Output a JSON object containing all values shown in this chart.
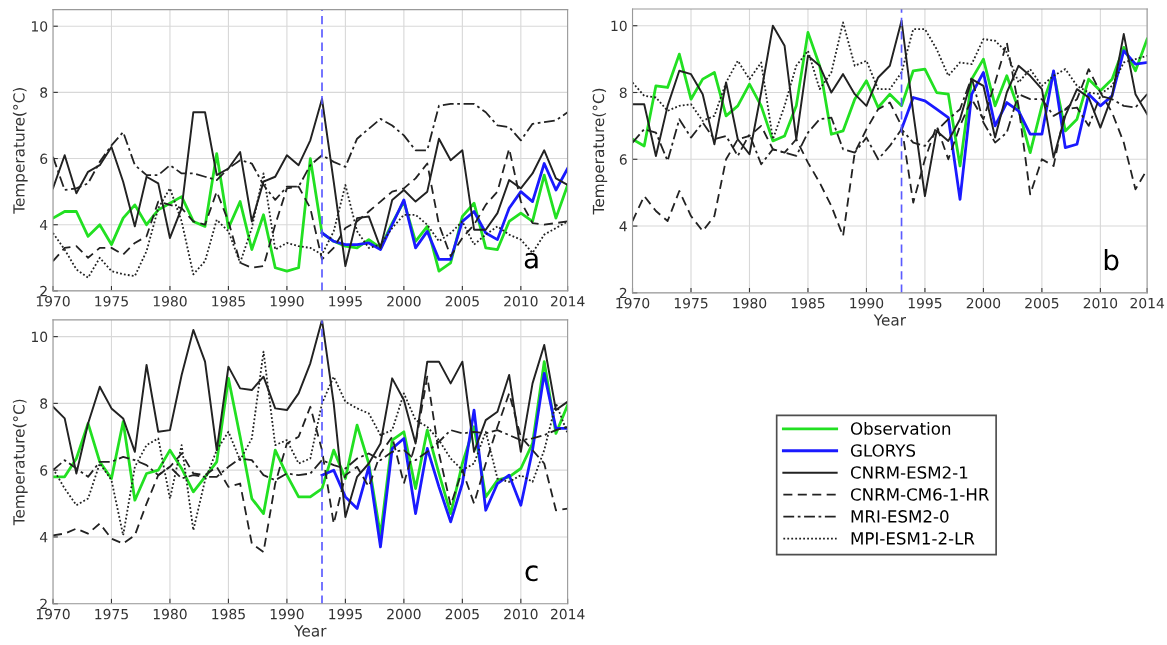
{
  "chart_data": [
    {
      "type": "line",
      "ylabel": "Temperature(°C)",
      "xlim": [
        1970,
        2014
      ],
      "ylim": [
        2,
        10.5
      ],
      "xticks": [
        1970,
        1975,
        1980,
        1985,
        1990,
        1995,
        2000,
        2005,
        2010,
        2014
      ],
      "yticks": [
        2,
        4,
        6,
        8,
        10
      ],
      "grid": true,
      "legend": "bottom right",
      "annotations": [
        "a"
      ],
      "x": [
        1970,
        1971,
        1972,
        1973,
        1974,
        1975,
        1976,
        1977,
        1978,
        1979,
        1980,
        1981,
        1982,
        1983,
        1984,
        1985,
        1986,
        1987,
        1988,
        1989,
        1990,
        1991,
        1992,
        1993,
        1994,
        1995,
        1996,
        1997,
        1998,
        1999,
        2000,
        2001,
        2002,
        2003,
        2004,
        2005,
        2006,
        2007,
        2008,
        2009,
        2010,
        2011,
        2012,
        2013,
        2014
      ],
      "ref_lines": [
        {
          "axis": "x",
          "value": 1993,
          "color": "#5a5aff",
          "line_style": "dashed"
        }
      ],
      "series": [
        {
          "name": "Observation",
          "color": "#22e022",
          "line_style": "solid",
          "values": [
            4.2,
            4.4,
            4.4,
            3.65,
            4.0,
            3.4,
            4.2,
            4.6,
            4.0,
            4.45,
            4.65,
            4.85,
            4.1,
            3.95,
            6.15,
            3.9,
            4.7,
            3.25,
            4.3,
            2.7,
            2.6,
            2.7,
            6.0,
            3.75,
            3.5,
            3.35,
            3.3,
            3.55,
            3.3,
            4.05,
            4.7,
            3.5,
            3.95,
            2.6,
            2.85,
            4.25,
            4.65,
            3.3,
            3.25,
            4.1,
            4.35,
            4.1,
            5.5,
            4.2,
            5.2
          ]
        },
        {
          "name": "GLORYS",
          "color": "#1a1aff",
          "line_style": "solid",
          "x": [
            1993,
            1994,
            1995,
            1996,
            1997,
            1998,
            1999,
            2000,
            2001,
            2002,
            2003,
            2004,
            2005,
            2006,
            2007,
            2008,
            2009,
            2010,
            2011,
            2012,
            2013,
            2014
          ],
          "values": [
            3.75,
            3.5,
            3.4,
            3.4,
            3.45,
            3.25,
            4.0,
            4.75,
            3.3,
            3.8,
            2.95,
            2.95,
            4.1,
            4.4,
            3.75,
            3.55,
            4.5,
            5.0,
            4.7,
            5.85,
            5.05,
            5.7
          ]
        },
        {
          "name": "CNRM-ESM2-1",
          "color": "#222222",
          "line_style": "solid",
          "values": [
            5.1,
            6.1,
            4.95,
            5.6,
            5.8,
            6.35,
            5.3,
            3.95,
            5.45,
            5.25,
            3.6,
            4.5,
            7.4,
            7.4,
            5.5,
            5.7,
            6.2,
            4.1,
            5.3,
            5.45,
            6.1,
            5.8,
            6.55,
            7.8,
            5.3,
            2.75,
            4.2,
            4.25,
            3.3,
            4.75,
            5.05,
            4.7,
            5.0,
            6.6,
            5.95,
            6.25,
            3.85,
            3.85,
            4.35,
            5.35,
            5.1,
            5.55,
            6.25,
            5.4,
            5.2
          ]
        },
        {
          "name": "CNRM-CM6-1-HR",
          "color": "#222222",
          "line_style": "dashed",
          "values": [
            2.9,
            3.3,
            3.35,
            3.0,
            3.3,
            3.3,
            3.1,
            3.45,
            3.65,
            4.7,
            4.6,
            4.5,
            4.1,
            4.0,
            5.0,
            4.1,
            2.85,
            2.7,
            2.75,
            4.0,
            5.1,
            5.15,
            4.5,
            2.95,
            3.3,
            3.9,
            4.1,
            4.4,
            4.7,
            5.0,
            5.1,
            5.4,
            5.85,
            4.0,
            3.05,
            3.6,
            4.0,
            4.6,
            5.0,
            6.3,
            4.7,
            4.05,
            4.0,
            4.05,
            4.1
          ]
        },
        {
          "name": "MRI-ESM2-0",
          "color": "#222222",
          "line_style": "dashdot",
          "values": [
            6.05,
            5.05,
            5.1,
            5.25,
            5.9,
            6.4,
            6.8,
            5.8,
            5.5,
            5.5,
            5.8,
            5.55,
            5.55,
            5.45,
            5.35,
            5.7,
            5.95,
            5.85,
            5.2,
            4.75,
            5.15,
            5.15,
            5.8,
            6.1,
            5.9,
            5.75,
            6.6,
            6.9,
            7.2,
            7.0,
            6.7,
            6.25,
            6.25,
            7.6,
            7.65,
            7.65,
            7.65,
            7.4,
            7.0,
            6.95,
            6.55,
            7.05,
            7.1,
            7.15,
            7.4
          ]
        },
        {
          "name": "MPI-ESM1-2-LR",
          "color": "#222222",
          "line_style": "dotted",
          "values": [
            3.75,
            3.25,
            2.65,
            2.4,
            3.0,
            2.6,
            2.5,
            2.45,
            3.2,
            4.5,
            5.1,
            4.1,
            2.5,
            2.9,
            4.15,
            3.8,
            2.85,
            3.9,
            5.55,
            3.25,
            3.45,
            3.35,
            3.3,
            3.1,
            3.8,
            5.2,
            3.8,
            3.3,
            3.4,
            3.9,
            4.3,
            4.3,
            4.0,
            3.5,
            3.75,
            4.1,
            3.4,
            3.7,
            3.95,
            3.7,
            3.55,
            3.15,
            3.7,
            3.9,
            4.1
          ]
        }
      ]
    },
    {
      "type": "line",
      "ylabel": "Temperature(°C)",
      "xlabel": "Year",
      "xlim": [
        1970,
        2014
      ],
      "ylim": [
        2,
        10.5
      ],
      "xticks": [
        1970,
        1975,
        1980,
        1985,
        1990,
        1995,
        2000,
        2005,
        2010,
        2014
      ],
      "yticks": [
        2,
        4,
        6,
        8,
        10
      ],
      "grid": true,
      "annotations": [
        "b"
      ],
      "x": [
        1970,
        1971,
        1972,
        1973,
        1974,
        1975,
        1976,
        1977,
        1978,
        1979,
        1980,
        1981,
        1982,
        1983,
        1984,
        1985,
        1986,
        1987,
        1988,
        1989,
        1990,
        1991,
        1992,
        1993,
        1994,
        1995,
        1996,
        1997,
        1998,
        1999,
        2000,
        2001,
        2002,
        2003,
        2004,
        2005,
        2006,
        2007,
        2008,
        2009,
        2010,
        2011,
        2012,
        2013,
        2014
      ],
      "ref_lines": [
        {
          "axis": "x",
          "value": 1993,
          "color": "#5a5aff",
          "line_style": "dashed"
        }
      ],
      "series": [
        {
          "color": "#22e022",
          "line_style": "solid",
          "values": [
            6.6,
            6.4,
            8.2,
            8.15,
            9.15,
            7.8,
            8.4,
            8.6,
            7.3,
            7.6,
            8.25,
            7.6,
            6.55,
            6.7,
            7.6,
            9.8,
            8.8,
            6.75,
            6.85,
            7.8,
            8.35,
            7.55,
            7.95,
            7.6,
            8.65,
            8.7,
            8.0,
            7.95,
            5.8,
            8.4,
            9.0,
            7.6,
            8.5,
            7.5,
            6.2,
            7.6,
            8.6,
            6.85,
            7.2,
            8.4,
            8.05,
            8.4,
            9.35,
            8.65,
            9.6
          ]
        },
        {
          "color": "#1a1aff",
          "line_style": "solid",
          "x": [
            1993,
            1994,
            1995,
            1996,
            1997,
            1998,
            1999,
            2000,
            2001,
            2002,
            2003,
            2004,
            2005,
            2006,
            2007,
            2008,
            2009,
            2010,
            2011,
            2012,
            2013,
            2014
          ],
          "values": [
            6.9,
            7.85,
            7.75,
            7.5,
            7.25,
            4.8,
            7.95,
            8.6,
            7.0,
            7.7,
            7.45,
            6.75,
            6.75,
            8.65,
            6.35,
            6.45,
            7.95,
            7.6,
            7.9,
            9.25,
            8.85,
            8.9
          ]
        },
        {
          "color": "#222222",
          "line_style": "solid",
          "values": [
            7.65,
            7.65,
            6.1,
            7.6,
            8.65,
            8.55,
            7.95,
            6.45,
            8.3,
            6.6,
            6.15,
            8.0,
            10.0,
            9.4,
            6.6,
            9.1,
            8.8,
            8.0,
            8.55,
            7.95,
            7.6,
            8.45,
            8.8,
            10.15,
            7.4,
            4.9,
            6.85,
            6.55,
            7.2,
            8.4,
            8.2,
            6.65,
            8.0,
            8.8,
            8.5,
            8.1,
            6.05,
            7.3,
            8.1,
            7.85,
            6.95,
            7.9,
            9.75,
            7.95,
            7.35
          ]
        },
        {
          "color": "#222222",
          "line_style": "dashed",
          "values": [
            4.15,
            4.9,
            4.45,
            4.15,
            5.05,
            4.3,
            3.85,
            4.3,
            6.0,
            6.6,
            6.7,
            7.0,
            6.3,
            6.2,
            6.6,
            5.9,
            5.3,
            4.6,
            3.7,
            6.2,
            6.9,
            7.5,
            7.7,
            7.0,
            4.7,
            6.0,
            7.0,
            6.0,
            7.0,
            7.8,
            7.2,
            8.3,
            9.5,
            7.6,
            4.95,
            6.0,
            5.8,
            7.5,
            7.8,
            8.7,
            8.0,
            7.4,
            6.5,
            5.1,
            5.7
          ]
        },
        {
          "color": "#222222",
          "line_style": "dashdot",
          "values": [
            6.5,
            6.9,
            6.8,
            5.95,
            7.2,
            6.65,
            7.1,
            6.6,
            6.7,
            6.1,
            6.75,
            5.85,
            6.3,
            6.2,
            6.1,
            6.8,
            7.2,
            7.25,
            6.3,
            6.2,
            6.65,
            6.0,
            6.4,
            6.9,
            6.5,
            6.4,
            6.85,
            7.2,
            7.5,
            8.45,
            7.1,
            6.5,
            6.8,
            7.95,
            7.8,
            7.8,
            7.3,
            7.5,
            7.55,
            7.0,
            7.9,
            7.8,
            7.6,
            7.55,
            7.95
          ]
        },
        {
          "color": "#222222",
          "line_style": "dotted",
          "values": [
            8.3,
            7.9,
            7.85,
            7.45,
            7.6,
            7.65,
            7.15,
            7.3,
            8.3,
            8.95,
            8.4,
            8.9,
            6.6,
            7.6,
            8.8,
            9.25,
            8.1,
            8.6,
            10.1,
            8.8,
            8.95,
            8.1,
            8.1,
            8.6,
            9.9,
            9.9,
            9.3,
            8.5,
            8.9,
            8.85,
            9.6,
            9.55,
            9.2,
            8.3,
            8.7,
            8.2,
            8.5,
            8.7,
            8.2,
            8.0,
            7.95,
            8.2,
            8.9,
            9.0,
            9.1
          ]
        }
      ]
    },
    {
      "type": "line",
      "ylabel": "Temperature(°C)",
      "xlabel": "Year",
      "xlim": [
        1970,
        2014
      ],
      "ylim": [
        2,
        10.5
      ],
      "xticks": [
        1970,
        1975,
        1980,
        1985,
        1990,
        1995,
        2000,
        2005,
        2010,
        2014
      ],
      "yticks": [
        2,
        4,
        6,
        8,
        10
      ],
      "grid": true,
      "annotations": [
        "c"
      ],
      "x": [
        1970,
        1971,
        1972,
        1973,
        1974,
        1975,
        1976,
        1977,
        1978,
        1979,
        1980,
        1981,
        1982,
        1983,
        1984,
        1985,
        1986,
        1987,
        1988,
        1989,
        1990,
        1991,
        1992,
        1993,
        1994,
        1995,
        1996,
        1997,
        1998,
        1999,
        2000,
        2001,
        2002,
        2003,
        2004,
        2005,
        2006,
        2007,
        2008,
        2009,
        2010,
        2011,
        2012,
        2013,
        2014
      ],
      "ref_lines": [
        {
          "axis": "x",
          "value": 1993,
          "color": "#5a5aff",
          "line_style": "dashed"
        }
      ],
      "series": [
        {
          "color": "#22e022",
          "line_style": "solid",
          "values": [
            5.8,
            5.8,
            6.35,
            7.4,
            6.25,
            5.75,
            7.45,
            5.1,
            5.9,
            6.0,
            6.6,
            6.05,
            5.35,
            5.8,
            6.25,
            8.75,
            7.0,
            5.15,
            4.7,
            6.6,
            5.85,
            5.2,
            5.2,
            5.45,
            6.6,
            5.75,
            7.35,
            6.2,
            4.05,
            6.9,
            7.15,
            5.45,
            7.2,
            5.9,
            4.7,
            6.2,
            7.3,
            5.2,
            5.7,
            5.8,
            6.05,
            6.8,
            9.25,
            7.1,
            7.95
          ]
        },
        {
          "color": "#1a1aff",
          "line_style": "solid",
          "x": [
            1993,
            1994,
            1995,
            1996,
            1997,
            1998,
            1999,
            2000,
            2001,
            2002,
            2003,
            2004,
            2005,
            2006,
            2007,
            2008,
            2009,
            2010,
            2011,
            2012,
            2013,
            2014
          ],
          "values": [
            5.85,
            6.0,
            5.2,
            4.85,
            6.1,
            3.7,
            6.65,
            6.95,
            4.7,
            6.65,
            5.5,
            4.45,
            5.6,
            7.8,
            4.8,
            5.6,
            5.85,
            4.95,
            6.6,
            8.9,
            7.25,
            7.25
          ]
        },
        {
          "color": "#222222",
          "line_style": "solid",
          "values": [
            7.9,
            7.55,
            5.9,
            7.4,
            8.5,
            7.85,
            7.55,
            6.55,
            9.15,
            7.15,
            7.2,
            8.85,
            10.2,
            9.25,
            6.6,
            9.1,
            8.45,
            8.4,
            8.8,
            7.85,
            7.8,
            8.3,
            9.2,
            10.5,
            8.0,
            4.6,
            5.8,
            6.2,
            6.8,
            8.75,
            8.1,
            6.8,
            9.25,
            9.25,
            8.6,
            9.25,
            6.55,
            7.5,
            7.75,
            8.85,
            6.55,
            8.6,
            9.75,
            7.8,
            8.05
          ]
        },
        {
          "color": "#222222",
          "line_style": "dashed",
          "values": [
            4.05,
            4.1,
            4.25,
            4.1,
            4.4,
            3.95,
            3.8,
            4.05,
            5.0,
            5.85,
            6.1,
            6.5,
            5.9,
            5.85,
            6.1,
            5.5,
            5.6,
            3.8,
            3.55,
            5.6,
            6.8,
            7.0,
            7.9,
            6.6,
            4.4,
            5.85,
            6.1,
            5.5,
            6.5,
            7.0,
            5.6,
            6.8,
            8.8,
            6.5,
            4.95,
            6.0,
            5.0,
            6.2,
            7.3,
            8.3,
            7.0,
            6.6,
            6.2,
            4.8,
            4.85
          ]
        },
        {
          "color": "#222222",
          "line_style": "dashdot",
          "values": [
            6.0,
            6.3,
            6.05,
            5.8,
            6.25,
            6.25,
            6.4,
            6.3,
            6.15,
            5.85,
            6.1,
            5.75,
            5.85,
            5.8,
            5.8,
            6.1,
            6.35,
            6.3,
            5.85,
            5.7,
            5.9,
            5.85,
            5.9,
            6.3,
            6.15,
            6.05,
            6.35,
            6.5,
            6.3,
            6.55,
            6.6,
            6.3,
            6.55,
            6.85,
            7.2,
            7.1,
            7.15,
            7.1,
            7.2,
            7.05,
            6.9,
            6.95,
            7.05,
            7.2,
            7.3
          ]
        },
        {
          "color": "#222222",
          "line_style": "dotted",
          "values": [
            6.05,
            5.45,
            4.95,
            5.15,
            6.2,
            5.7,
            4.05,
            6.1,
            6.75,
            6.95,
            5.15,
            6.75,
            4.2,
            5.7,
            6.6,
            7.15,
            6.3,
            6.95,
            9.55,
            6.75,
            6.9,
            6.2,
            6.35,
            8.0,
            8.8,
            8.05,
            7.85,
            7.7,
            7.05,
            7.2,
            8.3,
            7.5,
            7.3,
            6.9,
            6.35,
            6.0,
            6.2,
            7.15,
            5.75,
            5.65,
            5.85,
            5.65,
            6.6,
            8.0,
            7.1
          ]
        }
      ]
    }
  ]
}
